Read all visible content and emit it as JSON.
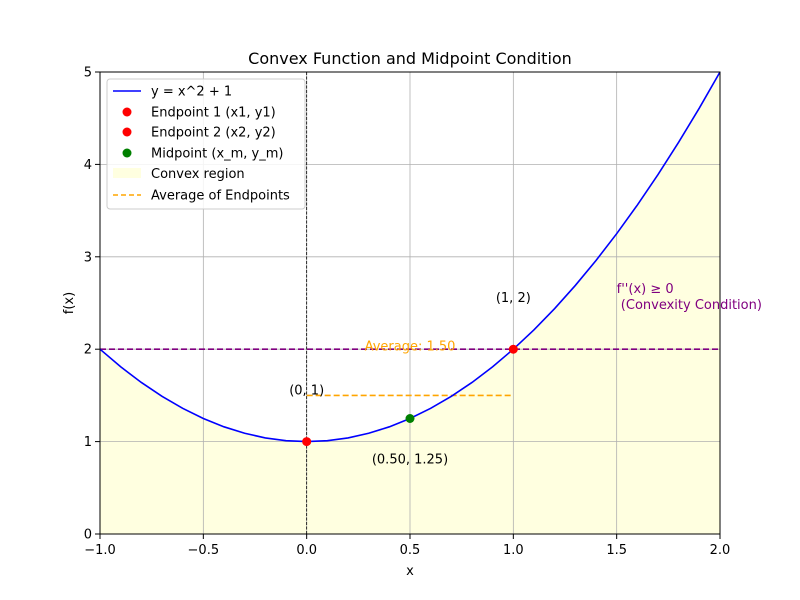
{
  "chart_data": {
    "type": "line",
    "title": "Convex Function and Midpoint Condition",
    "xlabel": "x",
    "ylabel": "f(x)",
    "xlim": [
      -1.0,
      2.0
    ],
    "ylim": [
      0,
      5
    ],
    "grid": true,
    "legend_position": "top-left",
    "x_ticks": [
      -1.0,
      -0.5,
      0.0,
      0.5,
      1.0,
      1.5,
      2.0
    ],
    "x_tick_labels": [
      "−1.0",
      "−0.5",
      "0.0",
      "0.5",
      "1.0",
      "1.5",
      "2.0"
    ],
    "y_ticks": [
      0,
      1,
      2,
      3,
      4,
      5
    ],
    "y_tick_labels": [
      "0",
      "1",
      "2",
      "3",
      "4",
      "5"
    ],
    "function_curve": {
      "name": "y = x^2 + 1",
      "color": "#0000ff",
      "x": [
        -1.0,
        -0.9,
        -0.8,
        -0.7,
        -0.6,
        -0.5,
        -0.4,
        -0.3,
        -0.2,
        -0.1,
        0.0,
        0.1,
        0.2,
        0.3,
        0.4,
        0.5,
        0.6,
        0.7,
        0.8,
        0.9,
        1.0,
        1.1,
        1.2,
        1.3,
        1.4,
        1.5,
        1.6,
        1.7,
        1.8,
        1.9,
        2.0
      ],
      "y": [
        2.0,
        1.81,
        1.64,
        1.49,
        1.36,
        1.25,
        1.16,
        1.09,
        1.04,
        1.01,
        1.0,
        1.01,
        1.04,
        1.09,
        1.16,
        1.25,
        1.36,
        1.49,
        1.64,
        1.81,
        2.0,
        2.21,
        2.44,
        2.69,
        2.96,
        3.25,
        3.56,
        3.89,
        4.24,
        4.61,
        5.0
      ]
    },
    "points": [
      {
        "name": "Endpoint 1 (x1, y1)",
        "x": 0,
        "y": 1,
        "color": "#ff0000",
        "label": "(0, 1)"
      },
      {
        "name": "Endpoint 2 (x2, y2)",
        "x": 1,
        "y": 2,
        "color": "#ff0000",
        "label": "(1, 2)"
      },
      {
        "name": "Midpoint (x_m, y_m)",
        "x": 0.5,
        "y": 1.25,
        "color": "#008000",
        "label": "(0.50, 1.25)"
      }
    ],
    "fill_region": {
      "name": "Convex region",
      "color": "#ffffe0"
    },
    "average_line": {
      "name": "Average of Endpoints",
      "y": 1.5,
      "x_range": [
        0,
        1
      ],
      "color": "#ffa500",
      "label": "Average: 1.50"
    },
    "reference_hline": {
      "y": 2,
      "color": "#800080"
    },
    "reference_vline": {
      "x": 0,
      "color": "#000000"
    },
    "annotation": {
      "text_line1": "f''(x) ≥ 0",
      "text_line2": " (Convexity Condition)",
      "x": 1.5,
      "y": 2.5,
      "color": "#800080"
    }
  }
}
